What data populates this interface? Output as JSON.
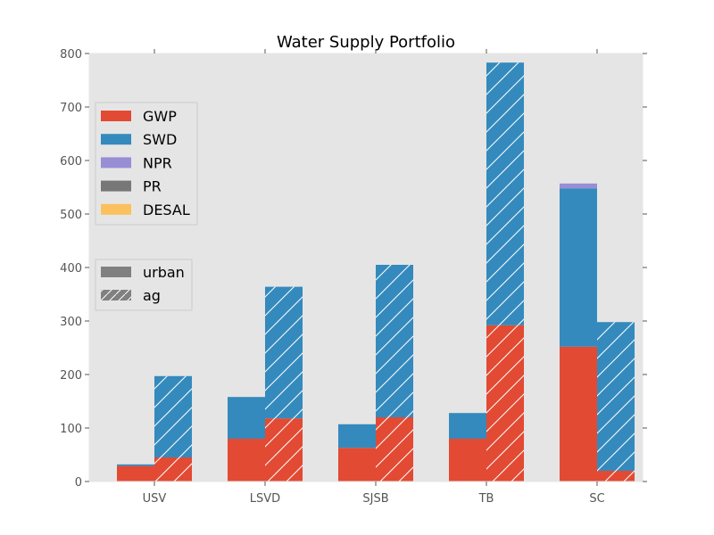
{
  "chart_data": {
    "type": "bar",
    "title": "Water Supply Portfolio",
    "xlabel": "",
    "ylabel": "",
    "categories": [
      "USV",
      "LSVD",
      "SJSB",
      "TB",
      "SC"
    ],
    "ylim": [
      0,
      800
    ],
    "yticks": [
      0,
      100,
      200,
      300,
      400,
      500,
      600,
      700,
      800
    ],
    "grid": false,
    "stacked": true,
    "groups": [
      {
        "name": "urban",
        "pattern": "solid"
      },
      {
        "name": "ag",
        "pattern": "hatch"
      }
    ],
    "series": [
      {
        "name": "GWP",
        "color": "#E24A33",
        "urban": [
          29,
          80,
          63,
          80,
          252
        ],
        "ag": [
          45,
          118,
          120,
          292,
          20
        ]
      },
      {
        "name": "SWD",
        "color": "#348ABD",
        "urban": [
          3,
          78,
          44,
          48,
          296
        ],
        "ag": [
          152,
          246,
          285,
          491,
          278
        ]
      },
      {
        "name": "NPR",
        "color": "#988ED5",
        "urban": [
          0,
          0,
          0,
          0,
          9
        ],
        "ag": [
          0,
          0,
          0,
          0,
          0
        ]
      },
      {
        "name": "PR",
        "color": "#777777",
        "urban": [
          0,
          0,
          0,
          0,
          0
        ],
        "ag": [
          0,
          0,
          0,
          0,
          0
        ]
      },
      {
        "name": "DESAL",
        "color": "#FBC15E",
        "urban": [
          0,
          0,
          0,
          0,
          0
        ],
        "ag": [
          0,
          0,
          0,
          0,
          0
        ]
      }
    ],
    "legend": {
      "series_placement": "upper-left",
      "groups_placement": "center-left"
    }
  }
}
